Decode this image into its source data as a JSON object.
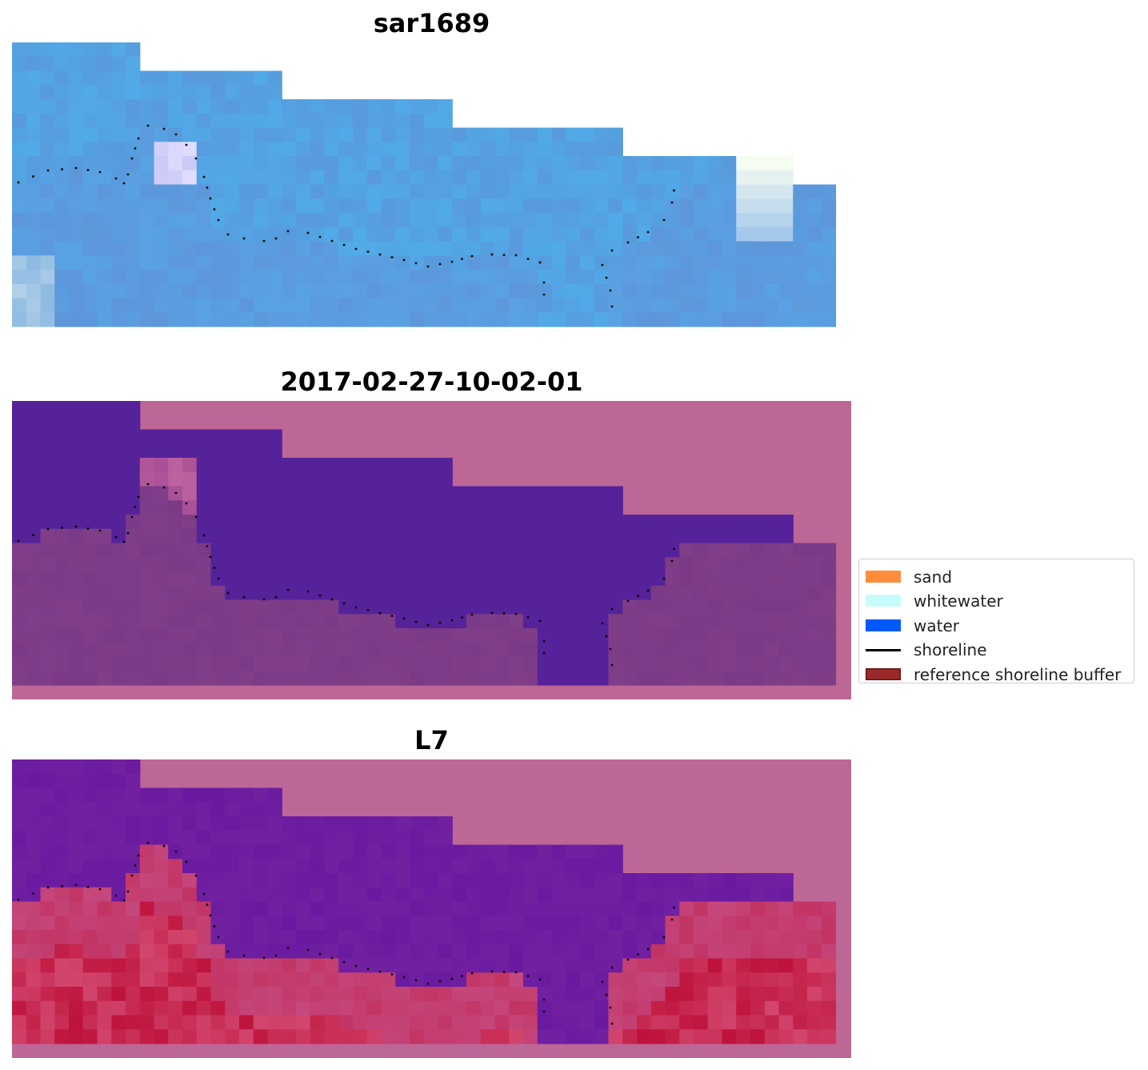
{
  "panels": [
    {
      "title": "sar1689",
      "kind": "rgb"
    },
    {
      "title": "2017-02-27-10-02-01",
      "kind": "classified"
    },
    {
      "title": "L7",
      "kind": "index"
    }
  ],
  "legend": {
    "items": [
      {
        "label": "sand",
        "type": "patch",
        "color": "#ff8c3a"
      },
      {
        "label": "whitewater",
        "type": "patch",
        "color": "#c8fcfc"
      },
      {
        "label": "water",
        "type": "patch",
        "color": "#0059ff"
      },
      {
        "label": "shoreline",
        "type": "line",
        "color": "#000000"
      },
      {
        "label": "reference shoreline buffer",
        "type": "patch",
        "color": "#9a2a2a"
      }
    ]
  },
  "colors": {
    "mask": "#bd6797",
    "water_class": "#55229a",
    "land_class": "#7a3a86",
    "rgb_base": "#5b93d6",
    "rgb_light": "#4cb4ee",
    "index_water": "#6a1aa0",
    "index_land": "#c23463",
    "shoreline_dots": "#000000"
  }
}
